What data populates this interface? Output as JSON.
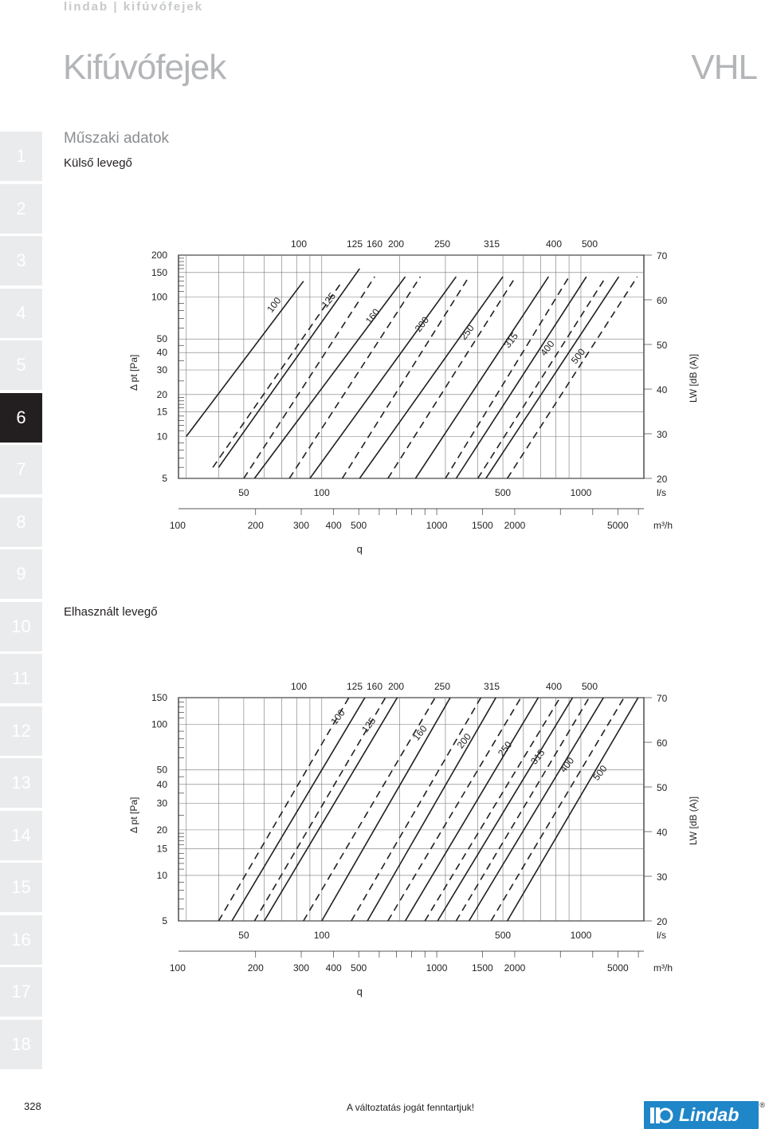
{
  "header": {
    "brand": "lindab | kifúvófejek",
    "title": "Kifúvófejek",
    "product_code": "VHL"
  },
  "section": {
    "heading": "Műszaki adatok",
    "sub1": "Külső levegő",
    "sub2": "Elhasznált levegő"
  },
  "tabs": [
    "1",
    "2",
    "3",
    "4",
    "5",
    "6",
    "7",
    "8",
    "9",
    "10",
    "11",
    "12",
    "13",
    "14",
    "15",
    "16",
    "17",
    "18"
  ],
  "active_tab": "6",
  "colors": {
    "tab_bg": "#eaebec",
    "tab_active": "#231f20",
    "title_gray": "#b3b5b8",
    "lindab_blue": "#1f86c8"
  },
  "footer": {
    "page_number": "328",
    "note": "A változtatás jogát fenntartjuk!",
    "logo_text": "Lindab",
    "logo_reg": "®"
  },
  "chart_data": [
    {
      "type": "line",
      "title": "Külső levegő",
      "xlabel": "q",
      "ylabel": "Δ pt [Pa]",
      "y2label": "LW [dB (A)]",
      "x_scale": "log",
      "y_scale": "log",
      "x_units": "l/s",
      "x2_units": "m³/h",
      "xlim": [
        28,
        1750
      ],
      "ylim": [
        5,
        200
      ],
      "x_ticks_ls": [
        "50",
        "100",
        "500",
        "1000"
      ],
      "x_ticks_m3h": [
        "100",
        "200",
        "300",
        "400",
        "500",
        "1000",
        "1500",
        "2000",
        "5000"
      ],
      "y_ticks": [
        "5",
        "10",
        "15",
        "20",
        "30",
        "40",
        "50",
        "100",
        "150",
        "200"
      ],
      "y2_ticks": [
        "20",
        "30",
        "40",
        "50",
        "60",
        "70"
      ],
      "top_sizes": [
        "100",
        "125",
        "160",
        "200",
        "250",
        "315",
        "400",
        "500"
      ],
      "series": [
        {
          "name": "100",
          "pressure_line": [
            [
              30,
              10
            ],
            [
              85,
              130
            ]
          ],
          "noise_line": [
            [
              38,
              6
            ],
            [
              120,
              130
            ]
          ]
        },
        {
          "name": "125",
          "pressure_line": [
            [
              40,
              6
            ],
            [
              140,
              160
            ]
          ],
          "noise_line": [
            [
              50,
              5
            ],
            [
              160,
              140
            ]
          ]
        },
        {
          "name": "160",
          "pressure_line": [
            [
              55,
              5
            ],
            [
              210,
              140
            ]
          ],
          "noise_line": [
            [
              75,
              5
            ],
            [
              240,
              140
            ]
          ]
        },
        {
          "name": "200",
          "pressure_line": [
            [
              90,
              5
            ],
            [
              330,
              140
            ]
          ],
          "noise_line": [
            [
              120,
              5
            ],
            [
              370,
              140
            ]
          ]
        },
        {
          "name": "250",
          "pressure_line": [
            [
              140,
              5
            ],
            [
              500,
              140
            ]
          ],
          "noise_line": [
            [
              180,
              5
            ],
            [
              560,
              140
            ]
          ]
        },
        {
          "name": "315",
          "pressure_line": [
            [
              230,
              5
            ],
            [
              750,
              140
            ]
          ],
          "noise_line": [
            [
              300,
              5
            ],
            [
              900,
              140
            ]
          ]
        },
        {
          "name": "400",
          "pressure_line": [
            [
              330,
              5
            ],
            [
              1050,
              140
            ]
          ],
          "noise_line": [
            [
              400,
              5
            ],
            [
              1250,
              140
            ]
          ]
        },
        {
          "name": "500",
          "pressure_line": [
            [
              430,
              5
            ],
            [
              1400,
              140
            ]
          ],
          "noise_line": [
            [
              520,
              5
            ],
            [
              1650,
              140
            ]
          ]
        }
      ]
    },
    {
      "type": "line",
      "title": "Elhasznált levegő",
      "xlabel": "q",
      "ylabel": "Δ pt [Pa]",
      "y2label": "LW [dB (A)]",
      "x_scale": "log",
      "y_scale": "log",
      "x_units": "l/s",
      "x2_units": "m³/h",
      "xlim": [
        28,
        1750
      ],
      "ylim": [
        5,
        150
      ],
      "x_ticks_ls": [
        "50",
        "100",
        "500",
        "1000"
      ],
      "x_ticks_m3h": [
        "100",
        "200",
        "300",
        "400",
        "500",
        "1000",
        "1500",
        "2000",
        "5000"
      ],
      "y_ticks": [
        "5",
        "10",
        "15",
        "20",
        "30",
        "40",
        "50",
        "100",
        "150"
      ],
      "y2_ticks": [
        "20",
        "30",
        "40",
        "50",
        "60",
        "70"
      ],
      "top_sizes": [
        "100",
        "125",
        "160",
        "200",
        "250",
        "315",
        "400",
        "500"
      ],
      "series": [
        {
          "name": "100",
          "pressure_line": [
            [
              45,
              5
            ],
            [
              150,
              160
            ]
          ],
          "noise_line": [
            [
              40,
              5
            ],
            [
              130,
              160
            ]
          ]
        },
        {
          "name": "125",
          "pressure_line": [
            [
              60,
              5
            ],
            [
              200,
              160
            ]
          ],
          "noise_line": [
            [
              55,
              5
            ],
            [
              180,
              160
            ]
          ]
        },
        {
          "name": "160",
          "pressure_line": [
            [
              100,
              5
            ],
            [
              320,
              160
            ]
          ],
          "noise_line": [
            [
              85,
              5
            ],
            [
              280,
              160
            ]
          ]
        },
        {
          "name": "200",
          "pressure_line": [
            [
              150,
              5
            ],
            [
              480,
              160
            ]
          ],
          "noise_line": [
            [
              130,
              5
            ],
            [
              420,
              160
            ]
          ]
        },
        {
          "name": "250",
          "pressure_line": [
            [
              210,
              5
            ],
            [
              700,
              160
            ]
          ],
          "noise_line": [
            [
              180,
              5
            ],
            [
              600,
              160
            ]
          ]
        },
        {
          "name": "315",
          "pressure_line": [
            [
              280,
              5
            ],
            [
              950,
              160
            ]
          ],
          "noise_line": [
            [
              250,
              5
            ],
            [
              850,
              160
            ]
          ]
        },
        {
          "name": "400",
          "pressure_line": [
            [
              370,
              5
            ],
            [
              1250,
              160
            ]
          ],
          "noise_line": [
            [
              330,
              5
            ],
            [
              1100,
              160
            ]
          ]
        },
        {
          "name": "500",
          "pressure_line": [
            [
              520,
              5
            ],
            [
              1700,
              160
            ]
          ],
          "noise_line": [
            [
              450,
              5
            ],
            [
              1500,
              160
            ]
          ]
        }
      ]
    }
  ]
}
